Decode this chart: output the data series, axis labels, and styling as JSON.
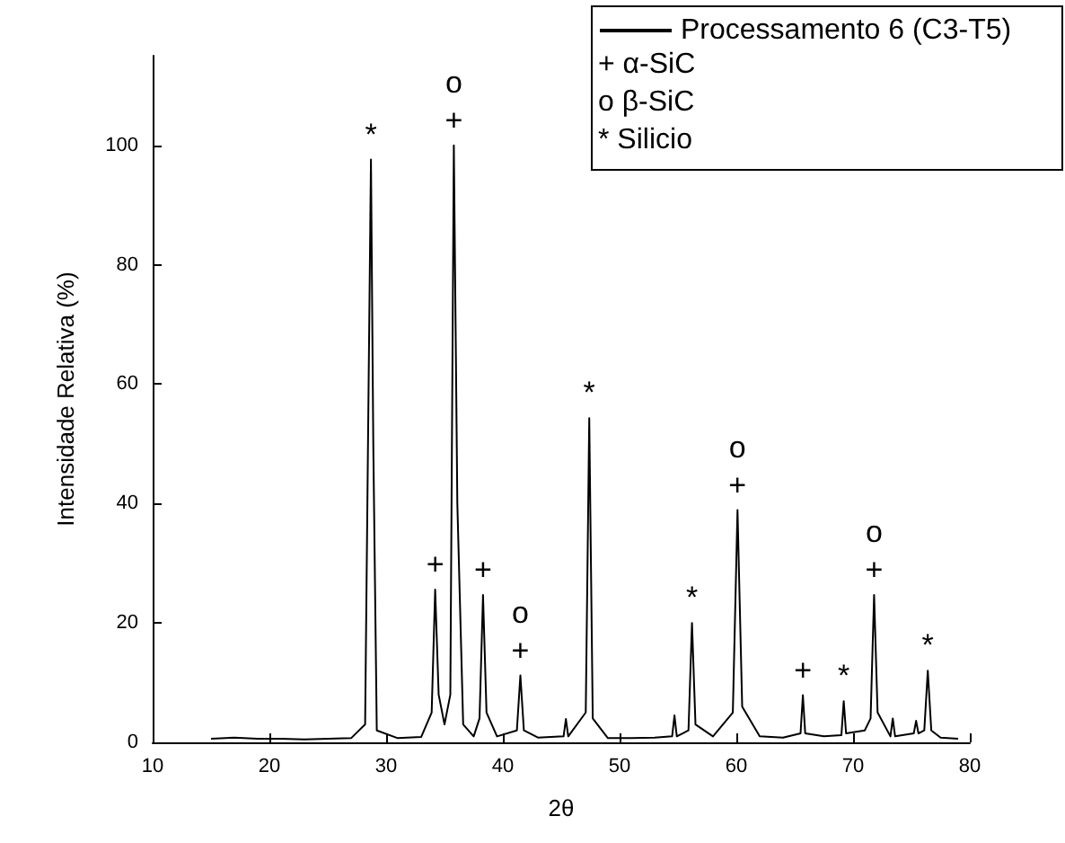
{
  "chart_data": {
    "type": "line",
    "xlabel": "2θ",
    "ylabel": "Intensidade Relativa (%)",
    "x": [
      15,
      17,
      19,
      21,
      23,
      25,
      27,
      28.2,
      28.5,
      28.7,
      28.9,
      29.2,
      31,
      33,
      33.9,
      34.2,
      34.5,
      35,
      35.5,
      35.8,
      36.1,
      36.6,
      37.5,
      38.0,
      38.3,
      38.6,
      39.5,
      41.2,
      41.5,
      41.8,
      43,
      45.2,
      45.4,
      45.6,
      47.1,
      47.4,
      47.7,
      49,
      51,
      53,
      54.5,
      54.7,
      54.9,
      55.9,
      56.2,
      56.5,
      58,
      59.7,
      60.1,
      60.5,
      62,
      64,
      65.5,
      65.7,
      65.9,
      67.5,
      69,
      69.2,
      69.4,
      71,
      71.5,
      71.8,
      72.1,
      73.2,
      73.4,
      73.6,
      75.2,
      75.4,
      75.6,
      76.1,
      76.4,
      76.7,
      77.5,
      79
    ],
    "series": [
      {
        "name": "Processamento 6 (C3-T5)",
        "color": "#000000",
        "values": [
          0.6,
          0.8,
          0.6,
          0.6,
          0.5,
          0.6,
          0.7,
          3,
          60,
          97.6,
          50,
          2,
          0.7,
          0.9,
          5,
          25.6,
          8,
          3,
          8,
          100,
          40,
          3,
          1,
          4,
          24.7,
          5,
          1,
          2,
          11.2,
          2,
          0.8,
          1,
          3.9,
          1,
          5,
          54.3,
          4,
          0.7,
          0.7,
          0.8,
          1,
          4.5,
          1,
          2,
          20,
          3,
          1,
          5,
          38.9,
          6,
          1,
          0.8,
          1.5,
          7.9,
          1.5,
          1,
          1.2,
          6.9,
          1.5,
          2,
          4,
          24.7,
          5,
          1,
          4,
          1,
          1.5,
          3.6,
          1.5,
          2,
          12,
          2,
          0.8,
          0.6
        ]
      }
    ],
    "xlim": [
      10,
      80
    ],
    "xticks": [
      10,
      20,
      30,
      40,
      50,
      60,
      70,
      80
    ],
    "ylim": [
      0,
      115
    ],
    "yticks": [
      0,
      20,
      40,
      60,
      80,
      100
    ],
    "grid": false,
    "legend": "top right",
    "marker": "none",
    "line_style": "solid",
    "annotations": [
      "+ α-SiC",
      "o β-SiC",
      "* Silicio",
      {
        "text": "*",
        "x": 28.7,
        "y": 97.6
      },
      {
        "text": "+",
        "x": 35.8,
        "y": 100
      },
      {
        "text": "o",
        "x": 35.8,
        "y": 100
      },
      {
        "text": "+",
        "x": 34.2,
        "y": 25.6
      },
      {
        "text": "+",
        "x": 38.3,
        "y": 24.7
      },
      {
        "text": "+",
        "x": 41.5,
        "y": 11.2
      },
      {
        "text": "o",
        "x": 41.5,
        "y": 11.2
      },
      {
        "text": "*",
        "x": 47.4,
        "y": 54.3
      },
      {
        "text": "*",
        "x": 56.2,
        "y": 20
      },
      {
        "text": "+",
        "x": 60.1,
        "y": 38.9
      },
      {
        "text": "o",
        "x": 60.1,
        "y": 38.9
      },
      {
        "text": "+",
        "x": 65.7,
        "y": 7.9
      },
      {
        "text": "*",
        "x": 69.2,
        "y": 6.9
      },
      {
        "text": "+",
        "x": 71.8,
        "y": 24.7
      },
      {
        "text": "o",
        "x": 71.8,
        "y": 24.7
      },
      {
        "text": "*",
        "x": 76.4,
        "y": 12
      }
    ]
  }
}
